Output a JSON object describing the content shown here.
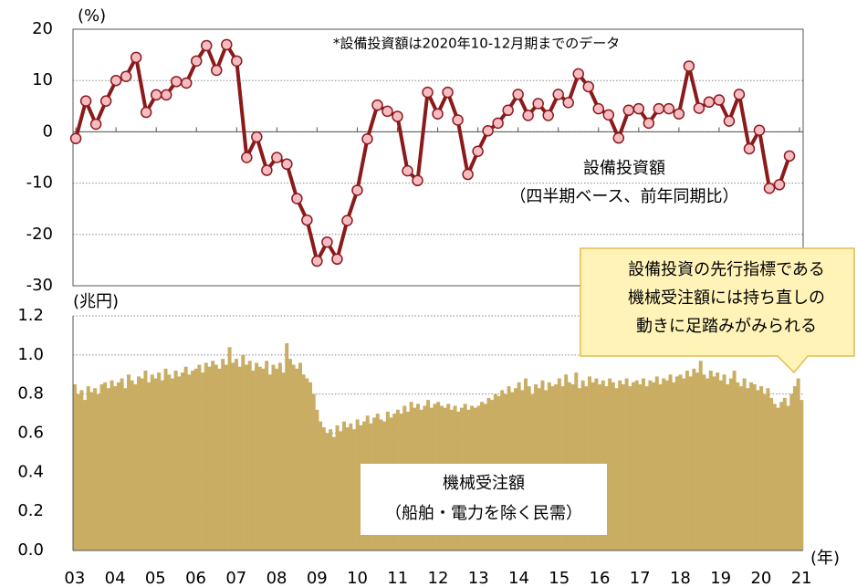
{
  "chart_data": [
    {
      "type": "line",
      "y_unit": "(%)",
      "annotation": "*設備投資額は2020年10-12月期までのデータ",
      "series_label": "設備投資額",
      "series_sublabel": "（四半期ベース、前年同期比）",
      "ylim": [
        -30,
        20
      ],
      "yticks": [
        20,
        10,
        0,
        -10,
        -20,
        -30
      ],
      "xlim": [
        2002.93,
        2021.09
      ],
      "xticks": [
        2003,
        2004,
        2005,
        2006,
        2007,
        2008,
        2009,
        2010,
        2011,
        2012,
        2013,
        2014,
        2015,
        2016,
        2017,
        2018,
        2019,
        2020,
        2021
      ],
      "grid": true,
      "x": [
        2003,
        2003.25,
        2003.5,
        2003.75,
        2004,
        2004.25,
        2004.5,
        2004.75,
        2005,
        2005.25,
        2005.5,
        2005.75,
        2006,
        2006.25,
        2006.5,
        2006.75,
        2007,
        2007.25,
        2007.5,
        2007.75,
        2008,
        2008.25,
        2008.5,
        2008.75,
        2009,
        2009.25,
        2009.5,
        2009.75,
        2010,
        2010.25,
        2010.5,
        2010.75,
        2011,
        2011.25,
        2011.5,
        2011.75,
        2012,
        2012.25,
        2012.5,
        2012.75,
        2013,
        2013.25,
        2013.5,
        2013.75,
        2014,
        2014.25,
        2014.5,
        2014.75,
        2015,
        2015.25,
        2015.5,
        2015.75,
        2016,
        2016.25,
        2016.5,
        2016.75,
        2017,
        2017.25,
        2017.5,
        2017.75,
        2018,
        2018.25,
        2018.5,
        2018.75,
        2019,
        2019.25,
        2019.5,
        2019.75,
        2020,
        2020.25,
        2020.5,
        2020.75
      ],
      "series": [
        {
          "name": "設備投資額",
          "color": "#8b1a1a",
          "marker_color": "#f6bcc4",
          "values": [
            -1.3,
            6,
            1.5,
            6,
            10,
            10.8,
            14.5,
            3.8,
            7.2,
            7.2,
            9.8,
            9.5,
            13.8,
            16.8,
            12,
            17,
            13.8,
            -5,
            -1,
            -7.5,
            -5,
            -6.3,
            -13,
            -17.2,
            -25.2,
            -21.5,
            -24.8,
            -17.3,
            -11.4,
            -1.4,
            5.2,
            4,
            3,
            -7.6,
            -9.5,
            7.7,
            3.5,
            7.7,
            2.3,
            -8.3,
            -3.8,
            0.2,
            1.7,
            4.2,
            7.3,
            3.2,
            5.5,
            3.2,
            7.3,
            5.7,
            11.3,
            8.8,
            4.5,
            3.3,
            -1.2,
            4.2,
            4.5,
            1.7,
            4.5,
            4.5,
            3.5,
            12.8,
            4.6,
            5.8,
            6.2,
            2.1,
            7.3,
            -3.3,
            0.3,
            -11,
            -10.3,
            -4.7
          ]
        }
      ]
    },
    {
      "type": "bar",
      "y_unit": "(兆円)",
      "x_unit": "(年)",
      "series_label": "機械受注額",
      "series_sublabel": "（船舶・電力を除く民需）",
      "callout": [
        "設備投資の先行指標である",
        "機械受注額には持ち直しの",
        "動きに足踏みがみられる"
      ],
      "ylim": [
        0,
        1.2
      ],
      "yticks": [
        {
          "value": 0,
          "label": "0.0"
        },
        0.2,
        0.4,
        0.6,
        0.8,
        {
          "value": 1,
          "label": "1.0"
        },
        1.2
      ],
      "grid": true,
      "color": "#c9ad63",
      "categories": [
        "03",
        null,
        null,
        null,
        null,
        null,
        null,
        null,
        null,
        null,
        null,
        null,
        "04",
        null,
        null,
        null,
        null,
        null,
        null,
        null,
        null,
        null,
        null,
        null,
        "05",
        null,
        null,
        null,
        null,
        null,
        null,
        null,
        null,
        null,
        null,
        null,
        "06",
        null,
        null,
        null,
        null,
        null,
        null,
        null,
        null,
        null,
        null,
        null,
        "07",
        null,
        null,
        null,
        null,
        null,
        null,
        null,
        null,
        null,
        null,
        null,
        "08",
        null,
        null,
        null,
        null,
        null,
        null,
        null,
        null,
        null,
        null,
        null,
        "09",
        null,
        null,
        null,
        null,
        null,
        null,
        null,
        null,
        null,
        null,
        null,
        "10",
        null,
        null,
        null,
        null,
        null,
        null,
        null,
        null,
        null,
        null,
        null,
        "11",
        null,
        null,
        null,
        null,
        null,
        null,
        null,
        null,
        null,
        null,
        null,
        "12",
        null,
        null,
        null,
        null,
        null,
        null,
        null,
        null,
        null,
        null,
        null,
        "13",
        null,
        null,
        null,
        null,
        null,
        null,
        null,
        null,
        null,
        null,
        null,
        "14",
        null,
        null,
        null,
        null,
        null,
        null,
        null,
        null,
        null,
        null,
        null,
        "15",
        null,
        null,
        null,
        null,
        null,
        null,
        null,
        null,
        null,
        null,
        null,
        "16",
        null,
        null,
        null,
        null,
        null,
        null,
        null,
        null,
        null,
        null,
        null,
        "17",
        null,
        null,
        null,
        null,
        null,
        null,
        null,
        null,
        null,
        null,
        null,
        "18",
        null,
        null,
        null,
        null,
        null,
        null,
        null,
        null,
        null,
        null,
        null,
        "19",
        null,
        null,
        null,
        null,
        null,
        null,
        null,
        null,
        null,
        null,
        null,
        "20",
        null,
        null,
        null,
        null,
        null,
        null,
        null,
        null,
        null,
        null,
        null,
        "21"
      ],
      "values": [
        0.85,
        0.8,
        0.82,
        0.77,
        0.84,
        0.81,
        0.83,
        0.8,
        0.85,
        0.86,
        0.83,
        0.87,
        0.84,
        0.86,
        0.88,
        0.83,
        0.9,
        0.87,
        0.85,
        0.89,
        0.88,
        0.92,
        0.86,
        0.9,
        0.88,
        0.91,
        0.87,
        0.93,
        0.9,
        0.88,
        0.92,
        0.89,
        0.91,
        0.94,
        0.9,
        0.92,
        0.93,
        0.95,
        0.91,
        0.96,
        0.94,
        0.97,
        0.95,
        0.93,
        0.98,
        0.95,
        1.04,
        0.96,
        0.98,
        0.94,
        1.0,
        0.95,
        0.97,
        0.92,
        0.96,
        0.94,
        0.93,
        0.97,
        0.9,
        0.95,
        0.93,
        0.96,
        0.91,
        1.06,
        0.98,
        0.95,
        0.93,
        0.96,
        0.9,
        0.88,
        0.86,
        0.8,
        0.72,
        0.66,
        0.63,
        0.6,
        0.62,
        0.58,
        0.64,
        0.61,
        0.66,
        0.63,
        0.65,
        0.62,
        0.67,
        0.64,
        0.66,
        0.69,
        0.65,
        0.68,
        0.7,
        0.67,
        0.66,
        0.71,
        0.68,
        0.7,
        0.72,
        0.7,
        0.74,
        0.71,
        0.76,
        0.73,
        0.75,
        0.72,
        0.74,
        0.77,
        0.73,
        0.75,
        0.76,
        0.74,
        0.73,
        0.75,
        0.72,
        0.74,
        0.71,
        0.73,
        0.75,
        0.72,
        0.74,
        0.73,
        0.74,
        0.76,
        0.75,
        0.78,
        0.77,
        0.8,
        0.79,
        0.82,
        0.8,
        0.84,
        0.81,
        0.83,
        0.86,
        0.82,
        0.88,
        0.84,
        0.8,
        0.85,
        0.83,
        0.87,
        0.82,
        0.86,
        0.84,
        0.85,
        0.88,
        0.84,
        0.9,
        0.86,
        0.85,
        0.91,
        0.83,
        0.87,
        0.84,
        0.89,
        0.86,
        0.88,
        0.85,
        0.87,
        0.84,
        0.88,
        0.86,
        0.83,
        0.87,
        0.85,
        0.88,
        0.84,
        0.86,
        0.87,
        0.85,
        0.88,
        0.84,
        0.87,
        0.86,
        0.89,
        0.85,
        0.88,
        0.87,
        0.9,
        0.86,
        0.89,
        0.9,
        0.88,
        0.92,
        0.89,
        0.93,
        0.91,
        0.97,
        0.9,
        0.88,
        0.92,
        0.89,
        0.91,
        0.87,
        0.9,
        0.85,
        0.88,
        0.92,
        0.86,
        0.84,
        0.88,
        0.83,
        0.86,
        0.85,
        0.82,
        0.84,
        0.8,
        0.83,
        0.78,
        0.75,
        0.73,
        0.76,
        0.78,
        0.74,
        0.8,
        0.84,
        0.88,
        0.77
      ]
    }
  ]
}
